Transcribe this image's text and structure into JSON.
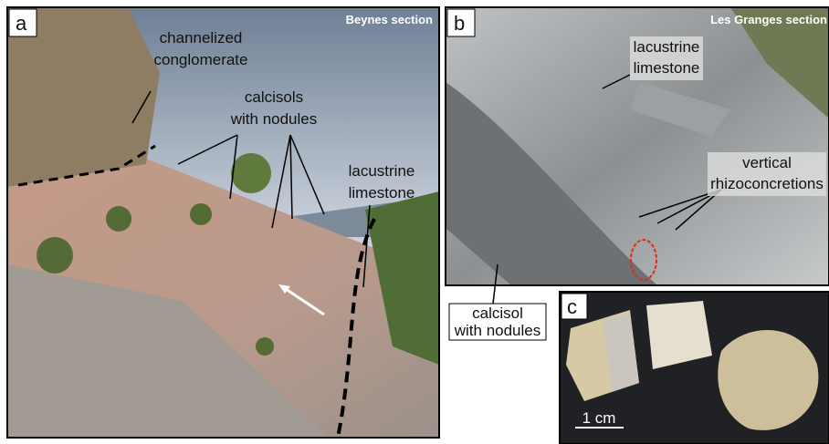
{
  "panels": [
    {
      "letter": "a",
      "section": "Beynes section",
      "annotations": [
        {
          "lines": [
            "channelized",
            "conglomerate"
          ]
        },
        {
          "lines": [
            "calcisols",
            "with nodules"
          ]
        },
        {
          "lines": [
            "lacustrine",
            "limestone"
          ]
        }
      ]
    },
    {
      "letter": "b",
      "section": "Les Granges section",
      "annotations": [
        {
          "lines": [
            "lacustrine",
            "limestone"
          ]
        },
        {
          "lines": [
            "vertical",
            "rhizoconcretions"
          ]
        },
        {
          "lines": [
            "calcisol",
            "with nodules"
          ]
        }
      ]
    },
    {
      "letter": "c",
      "scale_bar": "1 cm"
    }
  ]
}
